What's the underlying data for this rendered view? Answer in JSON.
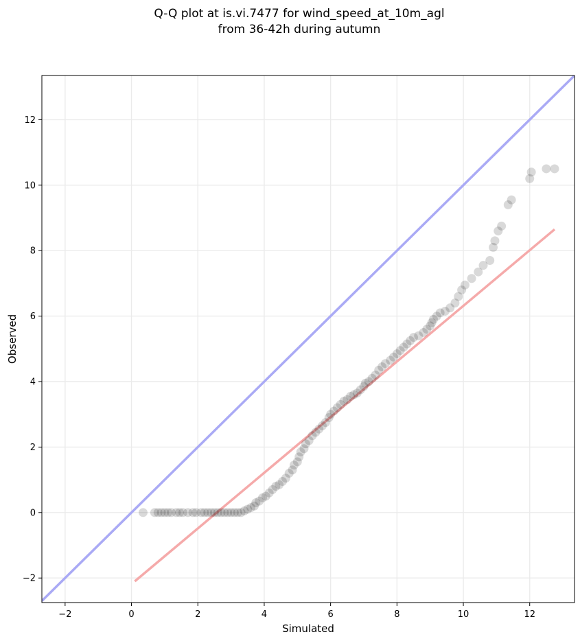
{
  "chart_data": {
    "type": "scatter",
    "title_line1": "Q-Q plot at is.vi.7477 for wind_speed_at_10m_agl",
    "title_line2": "from 36-42h during autumn",
    "xlabel": "Simulated",
    "ylabel": "Observed",
    "xlim": [
      -2.7,
      13.35
    ],
    "ylim": [
      -2.75,
      13.35
    ],
    "xticks": [
      -2,
      0,
      2,
      4,
      6,
      8,
      10,
      12
    ],
    "yticks": [
      -2,
      0,
      2,
      4,
      6,
      8,
      10,
      12
    ],
    "grid": true,
    "colors": {
      "points": "#000000",
      "identity_line": "#aaaaf5",
      "fit_line": "#f5aaaa",
      "grid": "#ebebeb"
    },
    "identity_line": {
      "x": [
        -2.7,
        13.35
      ],
      "y": [
        -2.7,
        13.35
      ]
    },
    "fit_line": {
      "x": [
        0.1,
        12.75
      ],
      "y": [
        -2.1,
        8.65
      ]
    },
    "points": [
      [
        0.35,
        0.0
      ],
      [
        0.7,
        0.0
      ],
      [
        0.8,
        0.0
      ],
      [
        0.9,
        0.0
      ],
      [
        1.0,
        0.0
      ],
      [
        1.1,
        0.0
      ],
      [
        1.2,
        0.0
      ],
      [
        1.35,
        0.0
      ],
      [
        1.45,
        0.0
      ],
      [
        1.55,
        0.0
      ],
      [
        1.7,
        0.0
      ],
      [
        1.85,
        0.0
      ],
      [
        1.95,
        0.0
      ],
      [
        2.1,
        0.0
      ],
      [
        2.2,
        0.0
      ],
      [
        2.3,
        0.0
      ],
      [
        2.4,
        0.0
      ],
      [
        2.5,
        0.0
      ],
      [
        2.6,
        0.0
      ],
      [
        2.7,
        0.0
      ],
      [
        2.8,
        0.0
      ],
      [
        2.9,
        0.0
      ],
      [
        3.0,
        0.0
      ],
      [
        3.1,
        0.0
      ],
      [
        3.2,
        0.0
      ],
      [
        3.3,
        0.0
      ],
      [
        3.4,
        0.05
      ],
      [
        3.5,
        0.1
      ],
      [
        3.6,
        0.15
      ],
      [
        3.7,
        0.2
      ],
      [
        3.75,
        0.3
      ],
      [
        3.85,
        0.35
      ],
      [
        3.95,
        0.45
      ],
      [
        4.05,
        0.5
      ],
      [
        4.15,
        0.6
      ],
      [
        4.25,
        0.7
      ],
      [
        4.35,
        0.8
      ],
      [
        4.45,
        0.85
      ],
      [
        4.55,
        0.95
      ],
      [
        4.65,
        1.05
      ],
      [
        4.75,
        1.2
      ],
      [
        4.85,
        1.3
      ],
      [
        4.9,
        1.45
      ],
      [
        5.0,
        1.55
      ],
      [
        5.05,
        1.7
      ],
      [
        5.1,
        1.85
      ],
      [
        5.2,
        1.95
      ],
      [
        5.25,
        2.1
      ],
      [
        5.35,
        2.2
      ],
      [
        5.45,
        2.35
      ],
      [
        5.55,
        2.45
      ],
      [
        5.65,
        2.55
      ],
      [
        5.75,
        2.65
      ],
      [
        5.85,
        2.75
      ],
      [
        5.95,
        2.9
      ],
      [
        6.0,
        3.0
      ],
      [
        6.1,
        3.1
      ],
      [
        6.2,
        3.2
      ],
      [
        6.3,
        3.3
      ],
      [
        6.4,
        3.4
      ],
      [
        6.5,
        3.45
      ],
      [
        6.6,
        3.55
      ],
      [
        6.7,
        3.6
      ],
      [
        6.8,
        3.65
      ],
      [
        6.9,
        3.75
      ],
      [
        7.0,
        3.85
      ],
      [
        7.05,
        3.95
      ],
      [
        7.15,
        4.0
      ],
      [
        7.25,
        4.1
      ],
      [
        7.35,
        4.2
      ],
      [
        7.45,
        4.35
      ],
      [
        7.55,
        4.45
      ],
      [
        7.65,
        4.55
      ],
      [
        7.8,
        4.65
      ],
      [
        7.9,
        4.75
      ],
      [
        8.0,
        4.85
      ],
      [
        8.1,
        4.95
      ],
      [
        8.2,
        5.05
      ],
      [
        8.3,
        5.15
      ],
      [
        8.4,
        5.25
      ],
      [
        8.5,
        5.35
      ],
      [
        8.65,
        5.4
      ],
      [
        8.8,
        5.5
      ],
      [
        8.9,
        5.6
      ],
      [
        9.0,
        5.7
      ],
      [
        9.05,
        5.8
      ],
      [
        9.1,
        5.9
      ],
      [
        9.2,
        6.0
      ],
      [
        9.3,
        6.1
      ],
      [
        9.45,
        6.15
      ],
      [
        9.6,
        6.25
      ],
      [
        9.75,
        6.4
      ],
      [
        9.85,
        6.6
      ],
      [
        9.95,
        6.8
      ],
      [
        10.05,
        6.95
      ],
      [
        10.25,
        7.15
      ],
      [
        10.45,
        7.35
      ],
      [
        10.6,
        7.55
      ],
      [
        10.8,
        7.7
      ],
      [
        10.9,
        8.1
      ],
      [
        10.95,
        8.3
      ],
      [
        11.05,
        8.6
      ],
      [
        11.15,
        8.75
      ],
      [
        11.35,
        9.4
      ],
      [
        11.45,
        9.55
      ],
      [
        12.0,
        10.2
      ],
      [
        12.05,
        10.4
      ],
      [
        12.5,
        10.5
      ],
      [
        12.75,
        10.5
      ]
    ]
  }
}
